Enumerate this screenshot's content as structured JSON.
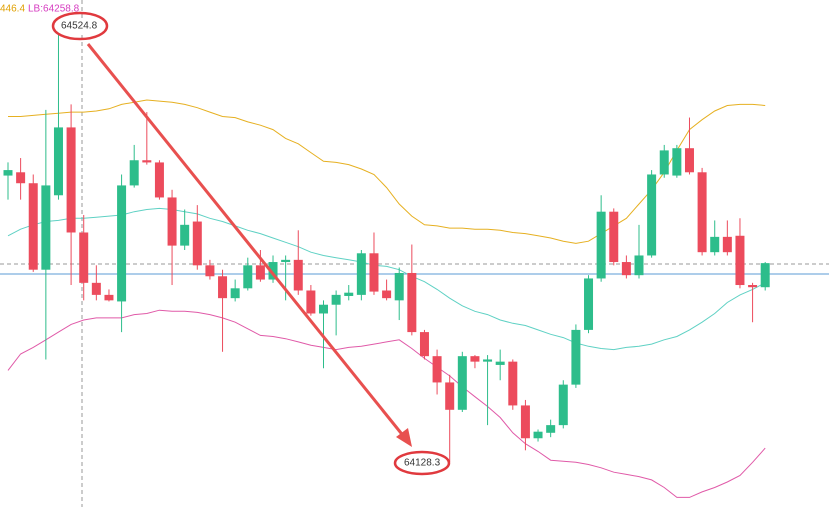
{
  "chart_data": {
    "type": "candlestick",
    "legend_texts": [
      "446.4",
      "LB:64258.8"
    ],
    "legend_colors": [
      "#e0a000",
      "#d63cc0"
    ],
    "annotations": [
      "64524.8",
      "64128.3"
    ],
    "ylim": [
      64087.2,
      64550.4
    ],
    "up_color": "#2dbd8b",
    "down_color": "#ec4b5c",
    "candles": {
      "open": [
        64390,
        64393,
        64383,
        64304,
        64372,
        64434,
        64338,
        64292,
        64281,
        64275,
        64381,
        64404,
        64402,
        64370,
        64326,
        64348,
        64308,
        64298,
        64278,
        64287,
        64308,
        64295,
        64311,
        64313,
        64285,
        64264,
        64272,
        64280,
        64281,
        64319,
        64285,
        64276,
        64301,
        64247,
        64225,
        64201,
        64176,
        64225,
        64220,
        64217,
        64220,
        64180,
        64150,
        64155,
        64162,
        64199,
        64249,
        64296,
        64357,
        64311,
        64299,
        64317,
        64391,
        64390,
        64415,
        64393,
        64320,
        64334,
        64335,
        64290,
        64288
      ],
      "high": [
        64402,
        64406,
        64391,
        64450,
        64524.8,
        64455,
        64354,
        64308,
        64286,
        64391,
        64418,
        64448,
        64404,
        64377,
        64359,
        64363,
        64313,
        64304,
        64295,
        64315,
        64322,
        64317,
        64317,
        64340,
        64290,
        64276,
        64285,
        64290,
        64322,
        64338,
        64295,
        64306,
        64327,
        64249,
        64231,
        64208,
        64229,
        64226,
        64226,
        64231,
        64222,
        64185,
        64158,
        64167,
        64203,
        64254,
        64299,
        64372,
        64360,
        64317,
        64345,
        64395,
        64418,
        64418,
        64443,
        64397,
        64349,
        64349,
        64351,
        64292,
        64311
      ],
      "low": [
        64368,
        64368,
        64302,
        64222,
        64368,
        64290,
        64276,
        64276,
        64275,
        64247,
        64379,
        64400,
        64368,
        64290,
        64322,
        64304,
        64295,
        64229,
        64275,
        64285,
        64293,
        64292,
        64276,
        64281,
        64262,
        64214,
        64244,
        64276,
        64276,
        64281,
        64276,
        64258,
        64244,
        64222,
        64190,
        64128.3,
        64174,
        64214,
        64162,
        64203,
        64176,
        64139,
        64147,
        64151,
        64159,
        64196,
        64246,
        64293,
        64308,
        64296,
        64296,
        64315,
        64388,
        64388,
        64391,
        64317,
        64317,
        64317,
        64287,
        64256,
        64285
      ],
      "close": [
        64395,
        64383,
        64304,
        64381,
        64434,
        64338,
        64292,
        64281,
        64276,
        64381,
        64404,
        64402,
        64370,
        64326,
        64345,
        64308,
        64298,
        64278,
        64287,
        64308,
        64295,
        64311,
        64313,
        64285,
        64264,
        64272,
        64281,
        64283,
        64319,
        64284,
        64278,
        64301,
        64247,
        64225,
        64201,
        64176,
        64225,
        64220,
        64222,
        64220,
        64180,
        64150,
        64156,
        64162,
        64199,
        64249,
        64296,
        64357,
        64311,
        64299,
        64317,
        64391,
        64413,
        64415,
        64393,
        64320,
        64334,
        64320,
        64290,
        64288,
        64310
      ]
    },
    "bands": [
      {
        "color": "#e6b021",
        "values": [
          64444,
          64444,
          64445,
          64446,
          64447,
          64448,
          64448,
          64449,
          64451,
          64455,
          64457,
          64459,
          64458,
          64457,
          64455,
          64452,
          64448,
          64444,
          64443,
          64439,
          64436,
          64432,
          64424,
          64419,
          64411,
          64403,
          64402,
          64400,
          64396,
          64391,
          64379,
          64364,
          64353,
          64345,
          64344,
          64342,
          64342,
          64341,
          64341,
          64340,
          64338,
          64337,
          64335,
          64333,
          64330,
          64328,
          64330,
          64337,
          64344,
          64351,
          64364,
          64377,
          64393,
          64413,
          64432,
          64441,
          64449,
          64454,
          64455,
          64455,
          64454
        ]
      },
      {
        "color": "#5fd1c4",
        "values": [
          64335,
          64341,
          64345,
          64348,
          64349,
          64351,
          64351,
          64352,
          64353,
          64354,
          64357,
          64359,
          64360,
          64359,
          64357,
          64355,
          64351,
          64348,
          64344,
          64340,
          64337,
          64333,
          64329,
          64325,
          64320,
          64317,
          64315,
          64313,
          64311,
          64308,
          64307,
          64304,
          64298,
          64293,
          64286,
          64278,
          64271,
          64266,
          64263,
          64258,
          64255,
          64253,
          64249,
          64245,
          64242,
          64237,
          64234,
          64232,
          64231,
          64233,
          64234,
          64236,
          64240,
          64243,
          64249,
          64256,
          64264,
          64274,
          64281,
          64286,
          64292
        ]
      },
      {
        "color": "#e05aa8",
        "values": [
          64212,
          64227,
          64233,
          64240,
          64247,
          64254,
          64258,
          64260,
          64260,
          64260,
          64263,
          64264,
          64267,
          64266,
          64266,
          64265,
          64263,
          64260,
          64256,
          64250,
          64244,
          64243,
          64241,
          64238,
          64235,
          64233,
          64231,
          64233,
          64234,
          64236,
          64238,
          64240,
          64232,
          64223,
          64215,
          64207,
          64197,
          64188,
          64179,
          64169,
          64155,
          64145,
          64138,
          64130,
          64129,
          64128,
          64126,
          64123,
          64119,
          64117,
          64115,
          64112,
          64105,
          64096,
          64096,
          64101,
          64105,
          64110,
          64116,
          64128,
          64141
        ]
      }
    ]
  }
}
